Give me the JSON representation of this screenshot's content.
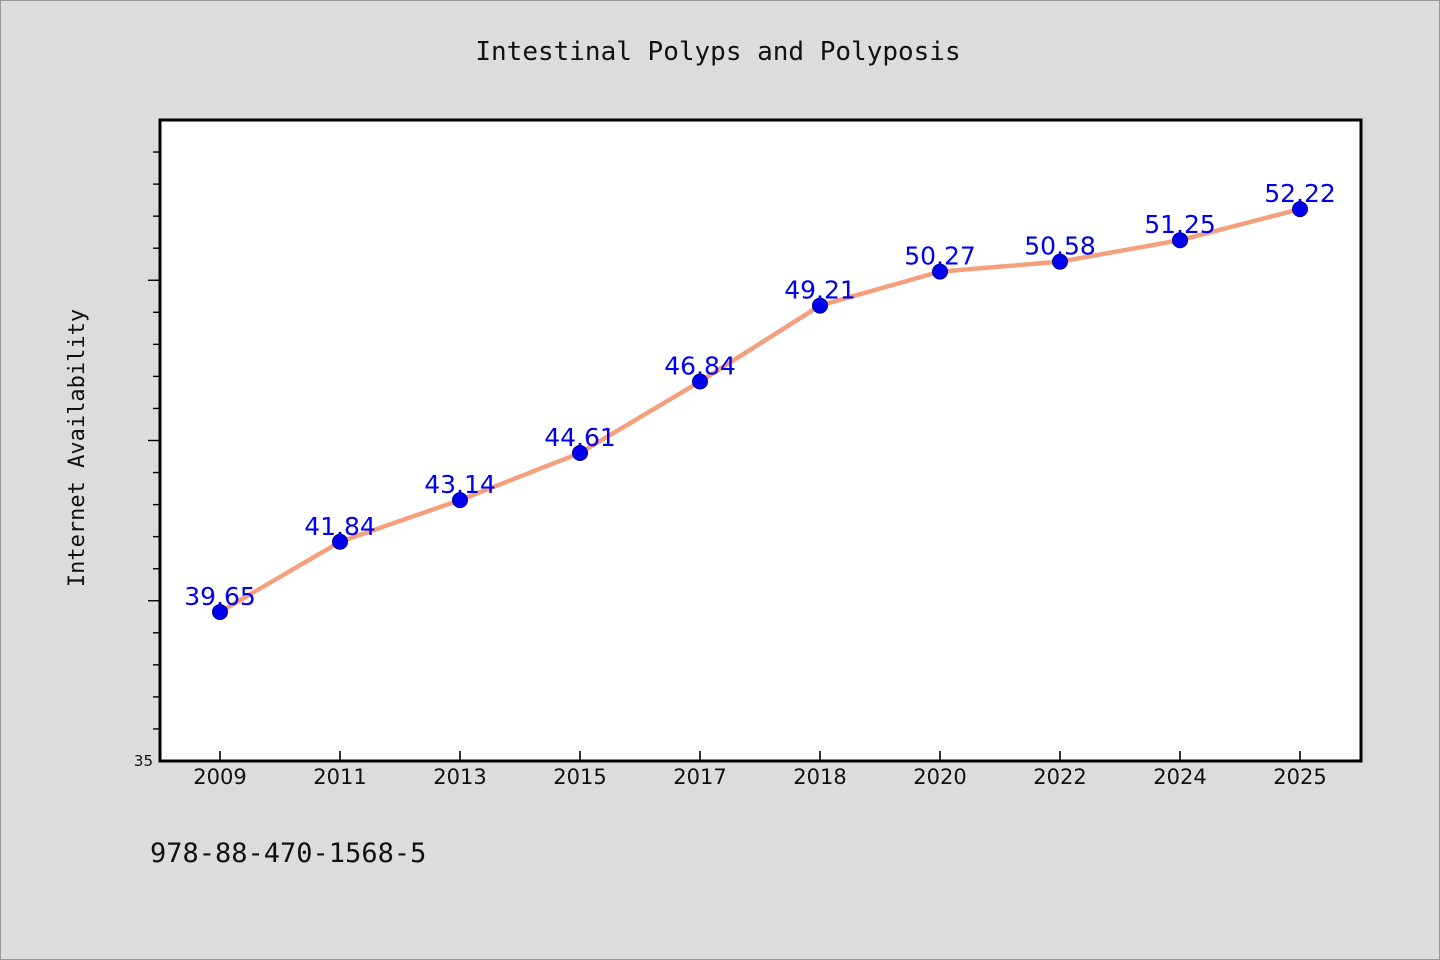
{
  "chart_data": {
    "type": "line",
    "title": "Intestinal Polyps and Polyposis",
    "xlabel": "",
    "ylabel": "Internet Availability",
    "categories": [
      "2009",
      "2011",
      "2013",
      "2015",
      "2017",
      "2018",
      "2020",
      "2022",
      "2024",
      "2025"
    ],
    "series": [
      {
        "values": [
          39.65,
          41.84,
          43.14,
          44.61,
          46.84,
          49.21,
          50.27,
          50.58,
          51.25,
          52.22
        ],
        "data_labels": [
          "39.65",
          "41.84",
          "43.14",
          "44.61",
          "46.84",
          "49.21",
          "50.27",
          "50.58",
          "51.25",
          "52.22"
        ],
        "line_color": "#f4a07e",
        "marker_color": "#0000ee",
        "label_color": "#0000ee"
      }
    ],
    "ylim": [
      35,
      55
    ],
    "y_tick_labels": [
      "35"
    ],
    "y_minor_tick_step": 1,
    "grid": false,
    "legend": "none"
  },
  "footnote": "978-88-470-1568-5",
  "colors": {
    "background": "#dcdcdc",
    "plot_background": "#ffffff",
    "axis": "#000000"
  }
}
